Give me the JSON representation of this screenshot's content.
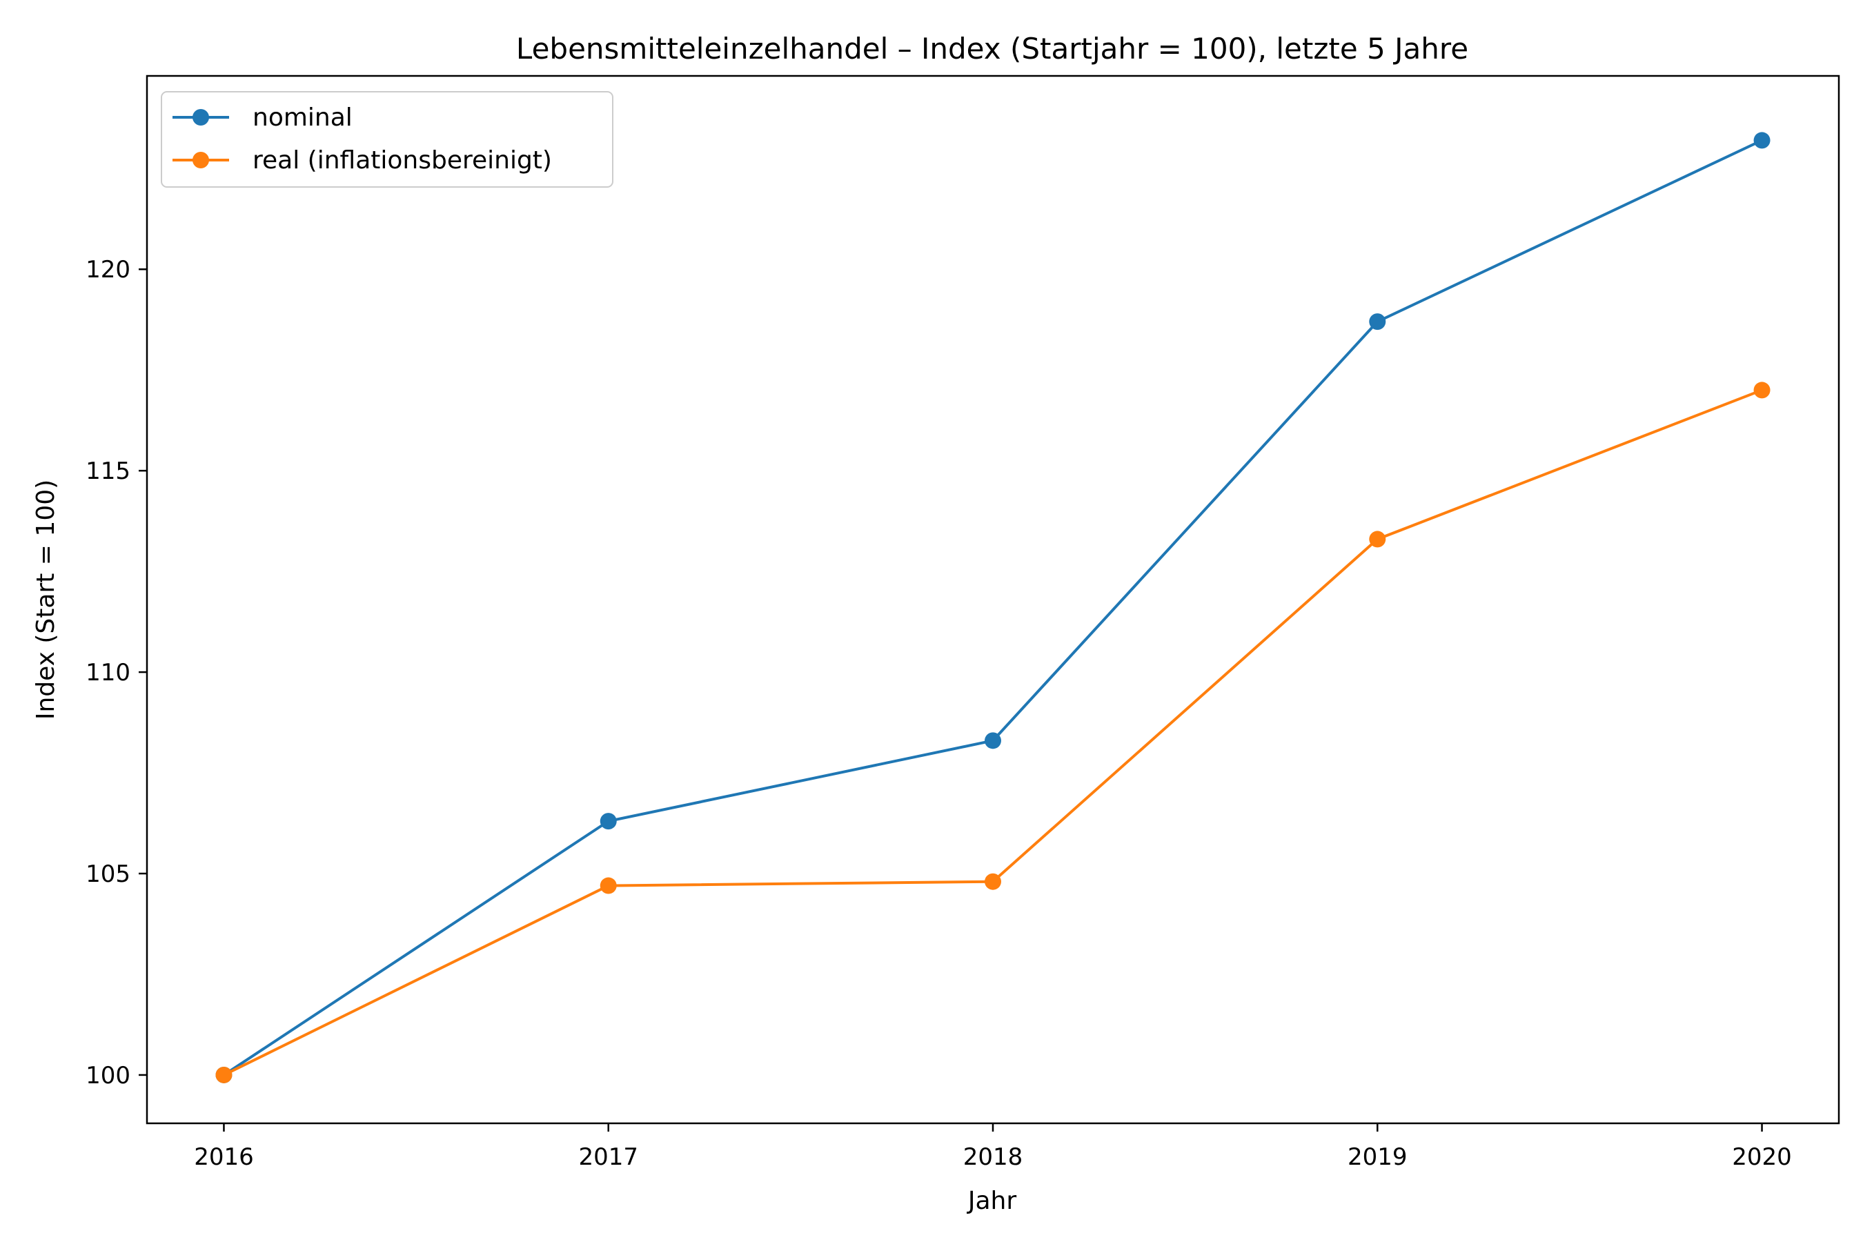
{
  "chart_data": {
    "type": "line",
    "title": "Lebensmitteleinzelhandel – Index (Startjahr = 100), letzte 5 Jahre",
    "xlabel": "Jahr",
    "ylabel": "Index (Start = 100)",
    "x": [
      2016,
      2017,
      2018,
      2019,
      2020
    ],
    "x_tick_labels": [
      "2016",
      "2017",
      "2018",
      "2019",
      "2020"
    ],
    "xlim": [
      2015.8,
      2020.2
    ],
    "ylim": [
      98.8,
      124.8
    ],
    "y_ticks": [
      100,
      105,
      110,
      115,
      120
    ],
    "y_tick_labels": [
      "100",
      "105",
      "110",
      "115",
      "120"
    ],
    "grid": false,
    "legend_position": "top-left",
    "series": [
      {
        "name": "nominal",
        "color": "#1f77b4",
        "marker": "circle",
        "values": [
          100.0,
          106.3,
          108.3,
          118.7,
          123.2
        ]
      },
      {
        "name": "real (inflationsbereinigt)",
        "color": "#ff7f0e",
        "marker": "circle",
        "values": [
          100.0,
          104.7,
          104.8,
          113.3,
          117.0
        ]
      }
    ]
  }
}
